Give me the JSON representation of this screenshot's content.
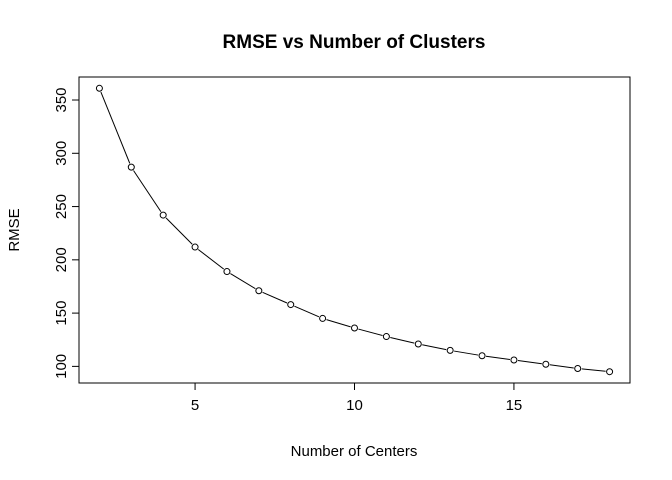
{
  "chart_data": {
    "type": "line",
    "title": "RMSE vs Number of Clusters",
    "xlabel": "Number of Centers",
    "ylabel": "RMSE",
    "x": [
      2,
      3,
      4,
      5,
      6,
      7,
      8,
      9,
      10,
      11,
      12,
      13,
      14,
      15,
      16,
      17,
      18
    ],
    "series": [
      {
        "values": [
          361,
          287,
          242,
          212,
          189,
          171,
          158,
          145,
          136,
          128,
          121,
          115,
          110,
          106,
          102,
          98,
          95
        ]
      }
    ],
    "xlim": [
      1.36,
      18.64
    ],
    "ylim": [
      84.4,
      371.6
    ],
    "xticks": [
      5,
      10,
      15
    ],
    "yticks": [
      100,
      150,
      200,
      250,
      300,
      350
    ],
    "grid": false,
    "legend": "none",
    "line_style": "solid line with open circle markers",
    "colors": {
      "line": "#000000",
      "marker_fill": "#ffffff",
      "background": "#ffffff"
    }
  }
}
